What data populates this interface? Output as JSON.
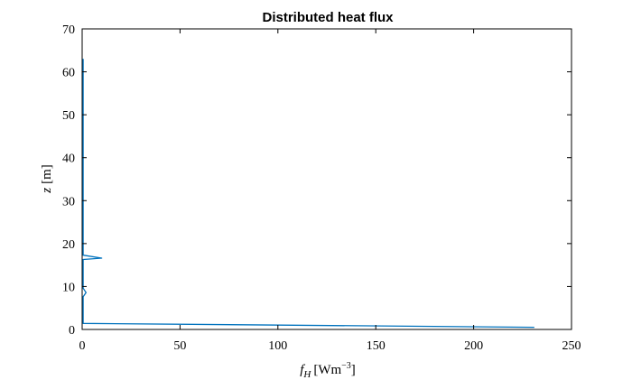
{
  "chart_data": {
    "type": "line",
    "title": "Distributed heat flux",
    "xlabel": {
      "var": "f",
      "sub": "H",
      "unit": "[Wm",
      "sup": "−3",
      "close": "]"
    },
    "ylabel": {
      "var": "z",
      "unit": "[m]"
    },
    "xlim": [
      0,
      250
    ],
    "ylim": [
      0,
      70
    ],
    "xticks": [
      0,
      50,
      100,
      150,
      200,
      250
    ],
    "yticks": [
      0,
      10,
      20,
      30,
      40,
      50,
      60,
      70
    ],
    "grid": false,
    "series": [
      {
        "color": "#0072BD",
        "x": [
          231,
          0.5,
          0.5,
          0.5,
          2,
          0.5,
          0.5,
          0.5,
          0.5,
          0.5,
          10,
          0.5,
          0.5,
          0.5,
          0.5
        ],
        "y": [
          0.5,
          1.4,
          5,
          7.6,
          8.6,
          9.6,
          12,
          15.5,
          15.9,
          16.3,
          16.6,
          17.3,
          18,
          40,
          63
        ]
      }
    ]
  }
}
